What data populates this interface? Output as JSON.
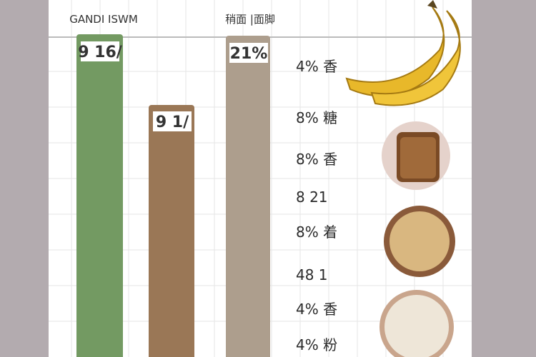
{
  "header": {
    "left_title": "GANDI ISWM",
    "right_title": "稍面 |面脚"
  },
  "bars": [
    {
      "label": "9 16/"
    },
    {
      "label": "9 1/"
    },
    {
      "label": "21%"
    }
  ],
  "side_labels": [
    "4% 香",
    "8% 糖",
    "8% 香",
    "8 21",
    "8% 着",
    "48 1",
    "4% 香",
    "4% 粉"
  ]
}
